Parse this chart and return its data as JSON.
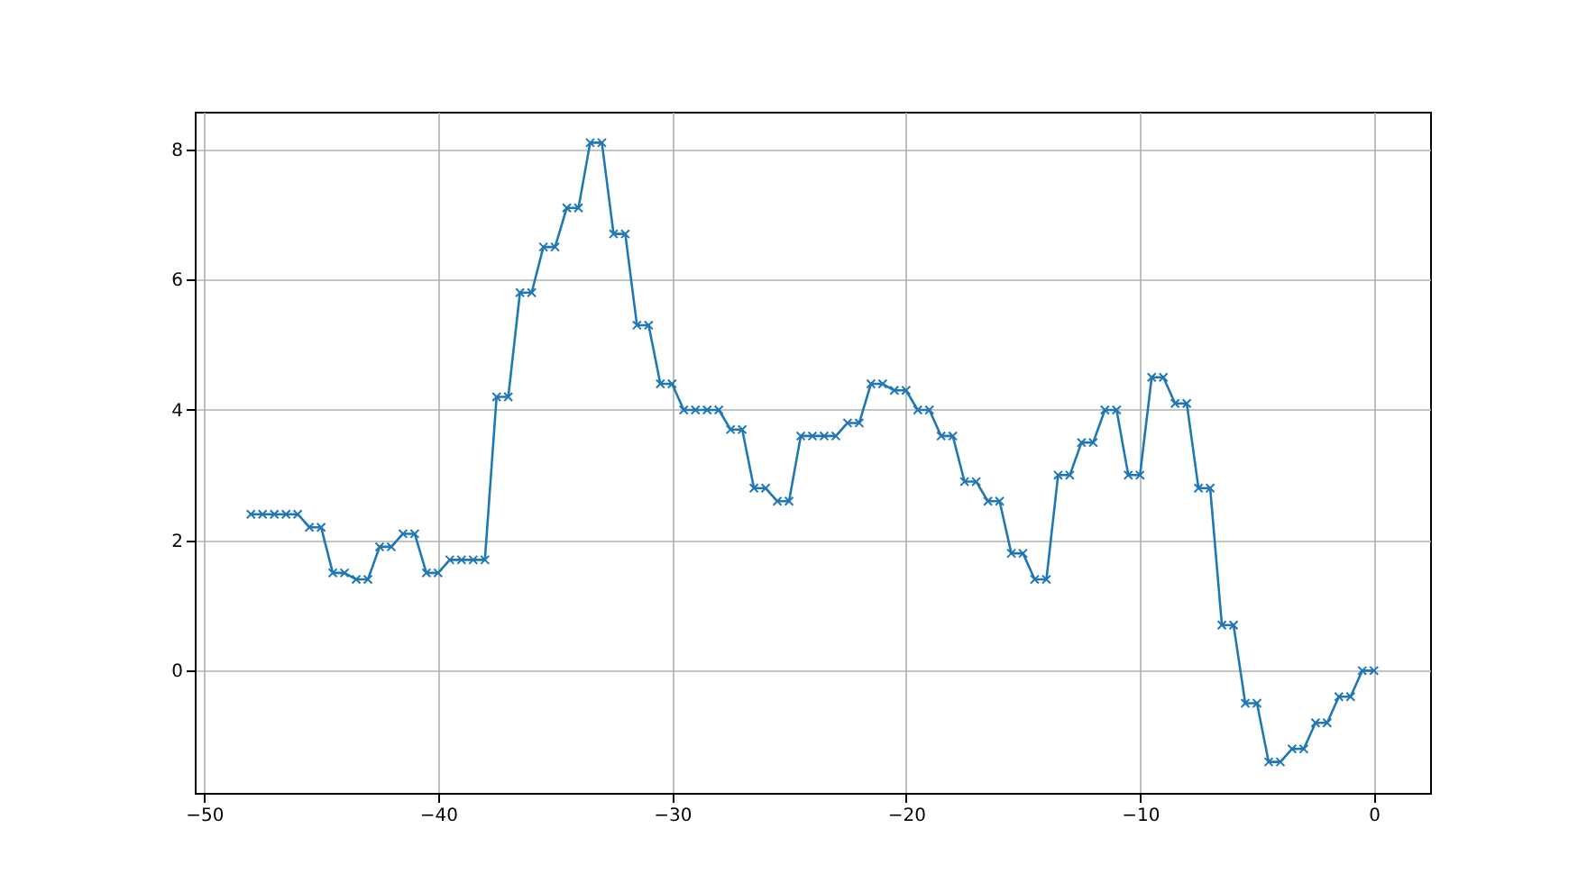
{
  "chart_data": {
    "type": "line",
    "x": [
      -48,
      -47.5,
      -47,
      -46.5,
      -46,
      -45.5,
      -45,
      -44.5,
      -44,
      -43.5,
      -43,
      -42.5,
      -42,
      -41.5,
      -41,
      -40.5,
      -40,
      -39.5,
      -39,
      -38.5,
      -38,
      -37.5,
      -37,
      -36.5,
      -36,
      -35.5,
      -35,
      -34.5,
      -34,
      -33.5,
      -33,
      -32.5,
      -32,
      -31.5,
      -31,
      -30.5,
      -30,
      -29.5,
      -29,
      -28.5,
      -28,
      -27.5,
      -27,
      -26.5,
      -26,
      -25.5,
      -25,
      -24.5,
      -24,
      -23.5,
      -23,
      -22.5,
      -22,
      -21.5,
      -21,
      -20.5,
      -20,
      -19.5,
      -19,
      -18.5,
      -18,
      -17.5,
      -17,
      -16.5,
      -16,
      -15.5,
      -15,
      -14.5,
      -14,
      -13.5,
      -13,
      -12.5,
      -12,
      -11.5,
      -11,
      -10.5,
      -10,
      -9.5,
      -9,
      -8.5,
      -8,
      -7.5,
      -7,
      -6.5,
      -6,
      -5.5,
      -5,
      -4.5,
      -4,
      -3.5,
      -3,
      -2.5,
      -2,
      -1.5,
      -1,
      -0.5,
      0
    ],
    "series": [
      {
        "color": "#1f77b4",
        "values": [
          2.4,
          2.4,
          2.4,
          2.4,
          2.4,
          2.2,
          2.2,
          1.5,
          1.5,
          1.4,
          1.4,
          1.9,
          1.9,
          2.1,
          2.1,
          1.5,
          1.5,
          1.7,
          1.7,
          1.7,
          1.7,
          4.2,
          4.2,
          5.8,
          5.8,
          6.5,
          6.5,
          7.1,
          7.1,
          8.1,
          8.1,
          6.7,
          6.7,
          5.3,
          5.3,
          4.4,
          4.4,
          4.0,
          4.0,
          4.0,
          4.0,
          3.7,
          3.7,
          2.8,
          2.8,
          2.6,
          2.6,
          3.6,
          3.6,
          3.6,
          3.6,
          3.8,
          3.8,
          4.4,
          4.4,
          4.3,
          4.3,
          4.0,
          4.0,
          3.6,
          3.6,
          2.9,
          2.9,
          2.6,
          2.6,
          1.8,
          1.8,
          1.4,
          1.4,
          3.0,
          3.0,
          3.5,
          3.5,
          4.0,
          4.0,
          3.0,
          3.0,
          4.5,
          4.5,
          4.1,
          4.1,
          2.8,
          2.8,
          0.7,
          0.7,
          -0.5,
          -0.5,
          -1.4,
          -1.4,
          -1.2,
          -1.2,
          -0.8,
          -0.8,
          -0.4,
          -0.4,
          0.0,
          0.0
        ]
      }
    ],
    "xlim": [
      -50.4,
      2.4
    ],
    "xticks": [
      -50,
      -40,
      -30,
      -20,
      -10,
      0
    ],
    "ylim": [
      -1.875,
      8.575
    ],
    "yticks": [
      0,
      2,
      4,
      6,
      8
    ],
    "grid": true,
    "marker": "cross",
    "line_style": "solid"
  }
}
